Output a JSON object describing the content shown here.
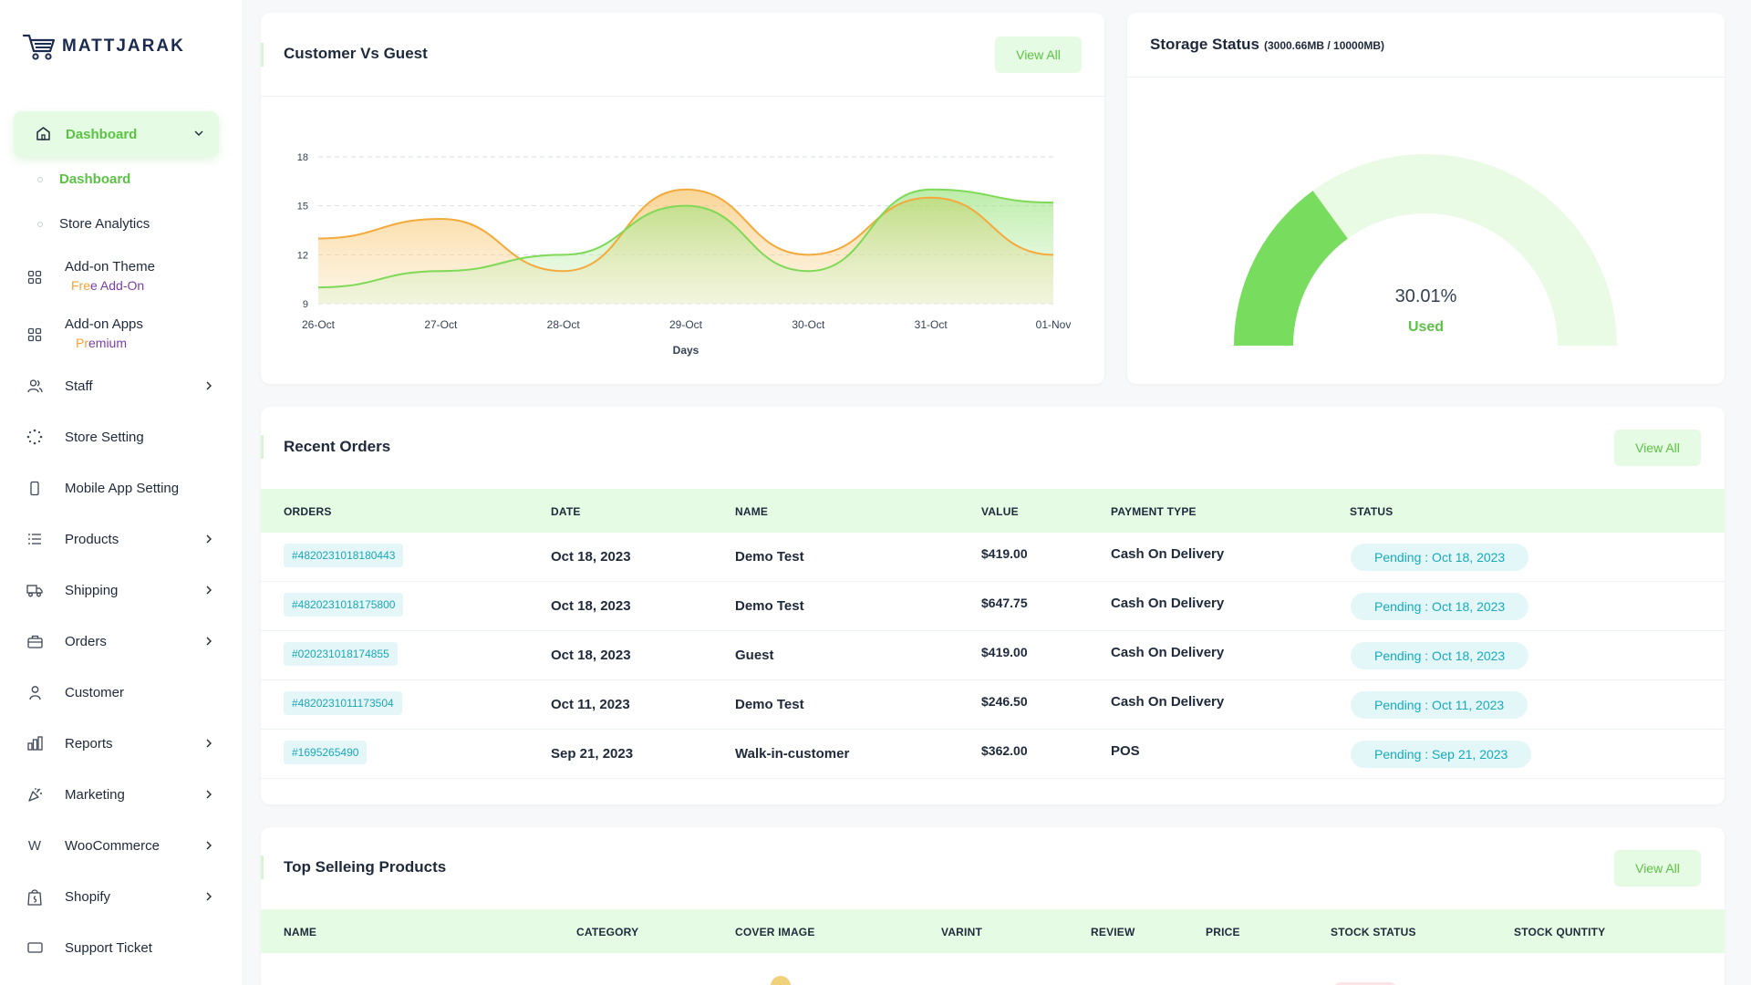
{
  "brand": {
    "name": "MATTJARAK"
  },
  "sidebar": {
    "active": {
      "label": "Dashboard"
    },
    "sub_items": [
      {
        "label": "Dashboard",
        "active": true
      },
      {
        "label": "Store Analytics",
        "active": false
      }
    ],
    "addon_theme": {
      "label": "Add-on Theme",
      "sub_a": "Fre",
      "sub_b": "e Add-On"
    },
    "addon_apps": {
      "label": "Add-on Apps",
      "sub_a": "Pr",
      "sub_b": "emium"
    },
    "items": [
      {
        "label": "Staff",
        "icon": "users-icon",
        "chevron": true
      },
      {
        "label": "Store Setting",
        "icon": "loader-icon",
        "chevron": false
      },
      {
        "label": "Mobile App Setting",
        "icon": "mobile-icon",
        "chevron": false
      },
      {
        "label": "Products",
        "icon": "list-icon",
        "chevron": true
      },
      {
        "label": "Shipping",
        "icon": "truck-icon",
        "chevron": true
      },
      {
        "label": "Orders",
        "icon": "briefcase-icon",
        "chevron": true
      },
      {
        "label": "Customer",
        "icon": "user-icon",
        "chevron": false
      },
      {
        "label": "Reports",
        "icon": "bar-chart-icon",
        "chevron": true
      },
      {
        "label": "Marketing",
        "icon": "confetti-icon",
        "chevron": true
      },
      {
        "label": "WooCommerce",
        "icon": "woocommerce-icon",
        "chevron": true
      },
      {
        "label": "Shopify",
        "icon": "shopify-icon",
        "chevron": true
      },
      {
        "label": "Support Ticket",
        "icon": "ticket-icon",
        "chevron": false
      }
    ]
  },
  "customer_vs_guest": {
    "title": "Customer Vs Guest",
    "view_all": "View All"
  },
  "chart_data": {
    "type": "area",
    "title": "Customer Vs Guest",
    "xlabel": "Days",
    "ylabel": "",
    "categories": [
      "26-Oct",
      "27-Oct",
      "28-Oct",
      "29-Oct",
      "30-Oct",
      "31-Oct",
      "01-Nov"
    ],
    "yticks": [
      9,
      12,
      15,
      18
    ],
    "ylim": [
      9,
      18
    ],
    "grid": true,
    "series": [
      {
        "color": "#f4a93b",
        "values": [
          13,
          14.2,
          11,
          16,
          12,
          15.5,
          12
        ]
      },
      {
        "color": "#7ed957",
        "values": [
          10,
          11,
          12,
          15,
          11,
          16,
          15.2
        ]
      }
    ]
  },
  "storage": {
    "title": "Storage Status",
    "detail": "(3000.66MB / 10000MB)",
    "percent_text": "30.01%",
    "percent_value": 30.01,
    "used_label": "Used"
  },
  "recent_orders": {
    "title": "Recent Orders",
    "view_all": "View All",
    "columns": [
      "ORDERS",
      "DATE",
      "NAME",
      "VALUE",
      "PAYMENT TYPE",
      "STATUS"
    ],
    "rows": [
      {
        "order": "#4820231018180443",
        "date": "Oct 18, 2023",
        "name": "Demo Test",
        "value": "$419.00",
        "payment": "Cash On Delivery",
        "status": "Pending : Oct 18, 2023"
      },
      {
        "order": "#4820231018175800",
        "date": "Oct 18, 2023",
        "name": "Demo Test",
        "value": "$647.75",
        "payment": "Cash On Delivery",
        "status": "Pending : Oct 18, 2023"
      },
      {
        "order": "#020231018174855",
        "date": "Oct 18, 2023",
        "name": "Guest",
        "value": "$419.00",
        "payment": "Cash On Delivery",
        "status": "Pending : Oct 18, 2023"
      },
      {
        "order": "#4820231011173504",
        "date": "Oct 11, 2023",
        "name": "Demo Test",
        "value": "$246.50",
        "payment": "Cash On Delivery",
        "status": "Pending : Oct 11, 2023"
      },
      {
        "order": "#1695265490",
        "date": "Sep 21, 2023",
        "name": "Walk-in-customer",
        "value": "$362.00",
        "payment": "POS",
        "status": "Pending : Sep 21, 2023"
      }
    ]
  },
  "top_products": {
    "title": "Top Selleing Products",
    "view_all": "View All",
    "columns": [
      "NAME",
      "CATEGORY",
      "COVER IMAGE",
      "VARINT",
      "REVIEW",
      "PRICE",
      "STOCK STATUS",
      "STOCK QUNTITY"
    ]
  }
}
